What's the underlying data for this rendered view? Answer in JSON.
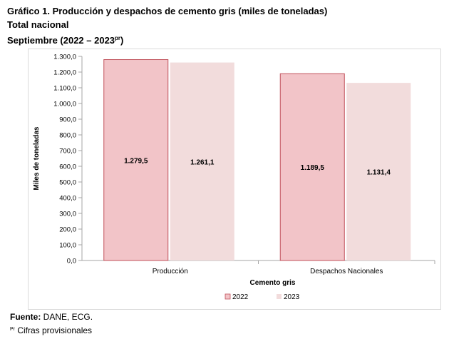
{
  "header": {
    "title": "Gráfico 1. Producción y despachos de cemento gris (miles de toneladas)",
    "subtitle": "Total nacional",
    "period_prefix": "Septiembre (2022 – 2023",
    "period_sup": "pr",
    "period_suffix": ")"
  },
  "footer": {
    "source_label": "Fuente:",
    "source_text": " DANE, ECG.",
    "note_sup": "Pr",
    "note_text": " Cifras provisionales"
  },
  "colors": {
    "series_2022": "#f2c4c8",
    "series_2022_edge": "#c0505a",
    "series_2023": "#f2dcdc",
    "axis": "#a6a6a6"
  },
  "chart_data": {
    "type": "bar",
    "categories": [
      "Producción",
      "Despachos Nacionales"
    ],
    "series": [
      {
        "name": "2022",
        "values": [
          1279.5,
          1189.5
        ],
        "labels": [
          "1.279,5",
          "1.189,5"
        ]
      },
      {
        "name": "2023",
        "values": [
          1261.1,
          1131.4
        ],
        "labels": [
          "1.261,1",
          "1.131,4"
        ]
      }
    ],
    "xlabel": "Cemento gris",
    "ylabel": "Miles de toneladas",
    "ylim": [
      0,
      1300
    ],
    "ytick_step": 100,
    "ytick_labels": [
      "0,0",
      "100,0",
      "200,0",
      "300,0",
      "400,0",
      "500,0",
      "600,0",
      "700,0",
      "800,0",
      "900,0",
      "1.000,0",
      "1.100,0",
      "1.200,0",
      "1.300,0"
    ],
    "grid": false,
    "legend": "bottom-center"
  }
}
